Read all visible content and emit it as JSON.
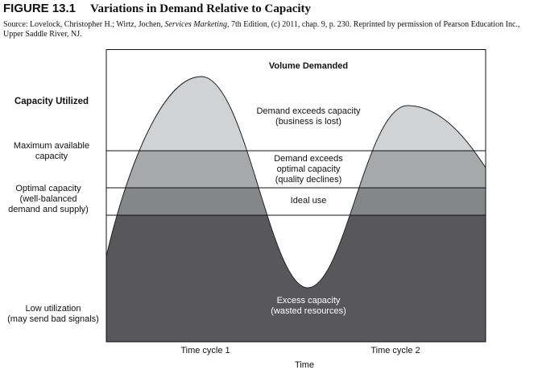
{
  "figure": {
    "number": "FIGURE 13.1",
    "title": "Variations in Demand Relative to Capacity",
    "source_pre": "Source: Lovelock, Christopher H.; Wirtz, Jochen, ",
    "source_italic": "Services Marketing",
    "source_post": ", 7th Edition, (c) 2011, chap. 9, p. 230. Reprinted by permission of Pearson Education Inc., Upper Saddle River, NJ."
  },
  "left_labels": {
    "heading": "Capacity Utilized",
    "max": [
      "Maximum available",
      "capacity"
    ],
    "optimal": [
      "Optimal capacity",
      "(well-balanced",
      "demand and supply)"
    ],
    "low": [
      "Low utilization",
      "(may send bad signals)"
    ]
  },
  "zones": {
    "top_heading": "Volume Demanded",
    "lost": [
      "Demand exceeds capacity",
      "(business is lost)"
    ],
    "quality": [
      "Demand exceeds",
      "optimal capacity",
      "(quality declines)"
    ],
    "ideal": "Ideal use",
    "excess": [
      "Excess capacity",
      "(wasted resources)"
    ]
  },
  "axis": {
    "cycle1": "Time cycle 1",
    "cycle2": "Time cycle 2",
    "xlabel": "Time"
  },
  "colors": {
    "above_max": "#d1d2d4",
    "max_to_optimal": "#a7a8aa",
    "optimal_band": "#858688",
    "below_optimal": "#58585a"
  }
}
